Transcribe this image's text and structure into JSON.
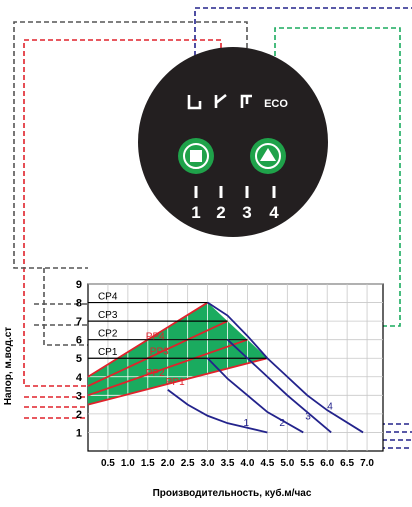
{
  "panel": {
    "mode_labels": [
      "",
      "",
      "",
      "ECO"
    ],
    "button_icons": [
      "square-stop-icon",
      "triangle-up-icon"
    ],
    "speed_numbers": [
      "1",
      "2",
      "3",
      "4"
    ],
    "colors": {
      "panel": "#231f20",
      "button": "#1fa24a",
      "icon": "#ffffff"
    }
  },
  "chart_data": {
    "type": "line",
    "xlabel": "Производительность, куб.м/час",
    "ylabel": "Напор, м.вод.ст",
    "xlim": [
      0,
      7.4
    ],
    "ylim": [
      0,
      9
    ],
    "x_ticks": [
      "0.5",
      "1.0",
      "1.5",
      "2.0",
      "2.5",
      "3.0",
      "3.5",
      "4.0",
      "4.5",
      "5.0",
      "5.5",
      "6.0",
      "6.5",
      "7.0"
    ],
    "y_ticks": [
      "1",
      "2",
      "3",
      "4",
      "5",
      "6",
      "7",
      "8",
      "9"
    ],
    "grid": true,
    "series": [
      {
        "name": "1",
        "color": "#23238c",
        "x": [
          2.0,
          2.5,
          3.0,
          3.5,
          4.5
        ],
        "y": [
          3.3,
          2.5,
          1.9,
          1.5,
          1.0
        ]
      },
      {
        "name": "2",
        "color": "#23238c",
        "x": [
          3.0,
          3.5,
          4.0,
          4.5,
          5.4
        ],
        "y": [
          5.0,
          3.9,
          3.0,
          2.1,
          1.0
        ]
      },
      {
        "name": "3",
        "color": "#23238c",
        "x": [
          3.5,
          4.0,
          4.5,
          5.0,
          6.1
        ],
        "y": [
          6.0,
          5.0,
          4.0,
          3.0,
          1.0
        ]
      },
      {
        "name": "4",
        "color": "#23238c",
        "x": [
          3.0,
          3.5,
          4.0,
          4.5,
          5.0,
          5.5,
          6.0,
          6.9
        ],
        "y": [
          8.0,
          7.3,
          6.2,
          5.0,
          4.0,
          3.0,
          2.2,
          1.0
        ]
      }
    ],
    "cp_lines": [
      {
        "name": "CP4",
        "y": 8.0,
        "x_end": 3.0
      },
      {
        "name": "CP3",
        "y": 7.0,
        "x_end": 3.5
      },
      {
        "name": "CP2",
        "y": 6.0,
        "x_end": 4.0
      },
      {
        "name": "CP1",
        "y": 5.0,
        "x_end": 4.5
      }
    ],
    "pp_lines": [
      {
        "name": "PP4",
        "x": [
          0,
          3.0
        ],
        "y": [
          4.0,
          8.0
        ]
      },
      {
        "name": "PP3",
        "x": [
          0,
          3.5
        ],
        "y": [
          3.5,
          7.0
        ]
      },
      {
        "name": "PP2",
        "x": [
          0,
          4.0
        ],
        "y": [
          3.0,
          6.0
        ]
      },
      {
        "name": "PP1",
        "x": [
          0,
          4.5
        ],
        "y": [
          2.5,
          5.0
        ]
      }
    ],
    "colors": {
      "fill": "#1aab5f",
      "pp_line": "#e0222b",
      "curve": "#23238c",
      "cp_line": "#000000"
    }
  }
}
